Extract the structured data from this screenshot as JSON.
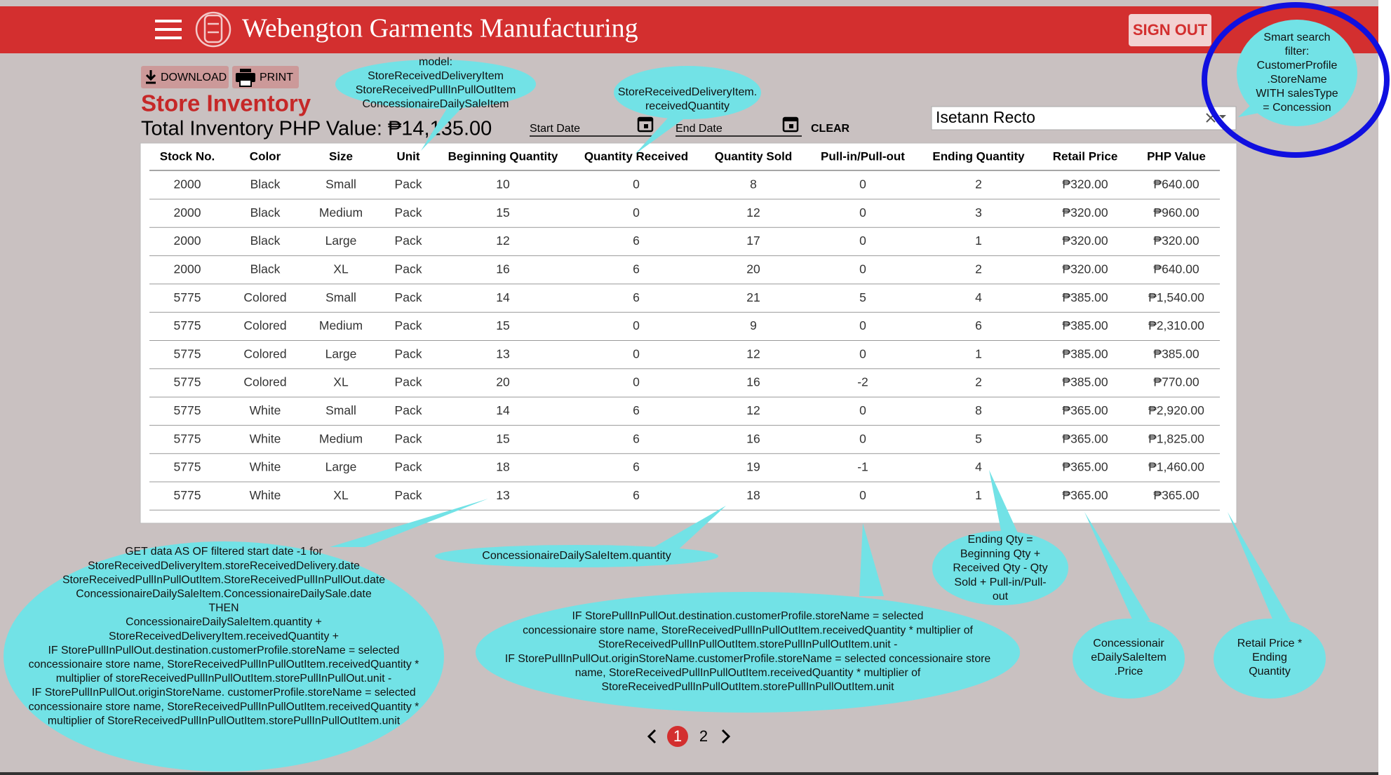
{
  "header": {
    "title": "Webengton Garments Manufacturing",
    "sign_out": "SIGN OUT"
  },
  "toolbar": {
    "download": "DOWNLOAD",
    "print": "PRINT"
  },
  "page_title": "Store Inventory",
  "total": "Total Inventory PHP Value: ₱14,135.00",
  "filters": {
    "start_date": "Start Date",
    "end_date": "End Date",
    "clear": "CLEAR",
    "search": "Isetann Recto"
  },
  "table": {
    "headers": [
      "Stock No.",
      "Color",
      "Size",
      "Unit",
      "Beginning Quantity",
      "Quantity Received",
      "Quantity Sold",
      "Pull-in/Pull-out",
      "Ending Quantity",
      "Retail Price",
      "PHP Value"
    ],
    "rows": [
      [
        "2000",
        "Black",
        "Small",
        "Pack",
        "10",
        "0",
        "8",
        "0",
        "2",
        "₱320.00",
        "₱640.00"
      ],
      [
        "2000",
        "Black",
        "Medium",
        "Pack",
        "15",
        "0",
        "12",
        "0",
        "3",
        "₱320.00",
        "₱960.00"
      ],
      [
        "2000",
        "Black",
        "Large",
        "Pack",
        "12",
        "6",
        "17",
        "0",
        "1",
        "₱320.00",
        "₱320.00"
      ],
      [
        "2000",
        "Black",
        "XL",
        "Pack",
        "16",
        "6",
        "20",
        "0",
        "2",
        "₱320.00",
        "₱640.00"
      ],
      [
        "5775",
        "Colored",
        "Small",
        "Pack",
        "14",
        "6",
        "21",
        "5",
        "4",
        "₱385.00",
        "₱1,540.00"
      ],
      [
        "5775",
        "Colored",
        "Medium",
        "Pack",
        "15",
        "0",
        "9",
        "0",
        "6",
        "₱385.00",
        "₱2,310.00"
      ],
      [
        "5775",
        "Colored",
        "Large",
        "Pack",
        "13",
        "0",
        "12",
        "0",
        "1",
        "₱385.00",
        "₱385.00"
      ],
      [
        "5775",
        "Colored",
        "XL",
        "Pack",
        "20",
        "0",
        "16",
        "-2",
        "2",
        "₱385.00",
        "₱770.00"
      ],
      [
        "5775",
        "White",
        "Small",
        "Pack",
        "14",
        "6",
        "12",
        "0",
        "8",
        "₱365.00",
        "₱2,920.00"
      ],
      [
        "5775",
        "White",
        "Medium",
        "Pack",
        "15",
        "6",
        "16",
        "0",
        "5",
        "₱365.00",
        "₱1,825.00"
      ],
      [
        "5775",
        "White",
        "Large",
        "Pack",
        "18",
        "6",
        "19",
        "-1",
        "4",
        "₱365.00",
        "₱1,460.00"
      ],
      [
        "5775",
        "White",
        "XL",
        "Pack",
        "13",
        "6",
        "18",
        "0",
        "1",
        "₱365.00",
        "₱365.00"
      ]
    ]
  },
  "pagination": [
    "1",
    "2"
  ],
  "annotations": [
    [
      "model:",
      "StoreReceivedDeliveryItem",
      "StoreReceivedPullInPullOutItem",
      "ConcessionaireDailySaleItem"
    ],
    [
      "StoreReceivedDeliveryItem.",
      "receivedQuantity"
    ],
    [
      "Smart search",
      "filter:",
      "CustomerProfile",
      ".StoreName",
      "WITH salesType",
      "= Concession"
    ],
    [
      "GET data AS OF filtered start date -1 for",
      "StoreReceivedDeliveryItem.storeReceivedDelivery.date",
      "StoreReceivedPullInPullOutItem.StoreReceivedPullInPullOut.date",
      "ConcessionaireDailySaleItem.ConcessionaireDailySale.date",
      "THEN",
      "ConcessionaireDailySaleItem.quantity +",
      "StoreReceivedDeliveryItem.receivedQuantity +",
      "IF StorePullInPullOut.destination.customerProfile.storeName = selected",
      "concessionaire store name, StoreReceivedPullInPullOutItem.receivedQuantity *",
      "multiplier of storeReceivedPullInPullOutItem.storePullInPullOut.unit -",
      "IF StorePullInPullOut.originStoreName. customerProfile.storeName = selected",
      "concessionaire store name, StoreReceivedPullInPullOutItem.receivedQuantity *",
      "multiplier of StoreReceivedPullInPullOutItem.storePullInPullOutItem.unit"
    ],
    [
      "ConcessionaireDailySaleItem.quantity"
    ],
    [
      "IF StorePullInPullOut.destination.customerProfile.storeName = selected",
      "concessionaire store name, StoreReceivedPullInPullOutItem.receivedQuantity * multiplier of",
      "StoreReceivedPullInPullOutItem.storePullInPullOutItem.unit -",
      "IF StorePullInPullOut.originStoreName.customerProfile.storeName = selected concessionaire store",
      "name, StoreReceivedPullInPullOutItem.receivedQuantity * multiplier of",
      "StoreReceivedPullInPullOutItem.storePullInPullOutItem.unit"
    ],
    [
      "Ending Qty =",
      "Beginning Qty +",
      "Received Qty - Qty",
      "Sold + Pull-in/Pull-",
      "out"
    ],
    [
      "Concessionair",
      "eDailySaleItem",
      ".Price"
    ],
    [
      "Retail Price *",
      "Ending",
      "Quantity"
    ]
  ]
}
